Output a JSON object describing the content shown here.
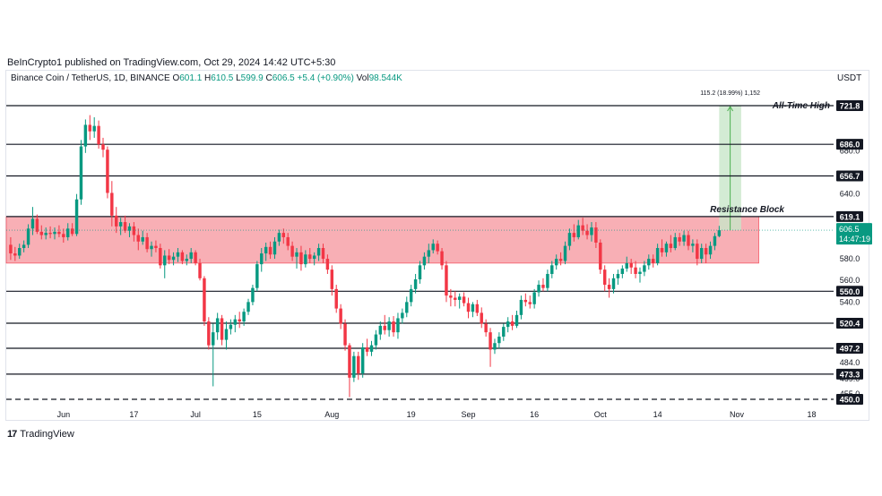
{
  "header": {
    "publisher": "BeInCrypto1 published on TradingView.com, Oct 29, 2024 14:42 UTC+5:30",
    "symbol": "Binance Coin / TetherUS, 1D, BINANCE",
    "open_label": "O",
    "open": "601.1",
    "high_label": "H",
    "high": "610.5",
    "low_label": "L",
    "low": "599.9",
    "close_label": "C",
    "close": "606.5",
    "change": "+5.4 (+0.90%)",
    "vol_label": "Vol",
    "vol": "98.544K",
    "currency": "USDT"
  },
  "footer": {
    "brand": "TradingView",
    "logo": "17"
  },
  "colors": {
    "up": "#089981",
    "down": "#f23645",
    "zone": "#f7a1a8",
    "projection": "#c8e6c9"
  },
  "chart_data": {
    "type": "candlestick",
    "y_range": [
      445,
      740
    ],
    "x_range": [
      "2024-05-19",
      "2024-11-23"
    ],
    "x_ticks": [
      {
        "label": "Jun",
        "date": "2024-06-01"
      },
      {
        "label": "17",
        "date": "2024-06-17"
      },
      {
        "label": "Jul",
        "date": "2024-07-01"
      },
      {
        "label": "15",
        "date": "2024-07-15"
      },
      {
        "label": "Aug",
        "date": "2024-08-01"
      },
      {
        "label": "19",
        "date": "2024-08-19"
      },
      {
        "label": "Sep",
        "date": "2024-09-01"
      },
      {
        "label": "16",
        "date": "2024-09-16"
      },
      {
        "label": "Oct",
        "date": "2024-10-01"
      },
      {
        "label": "14",
        "date": "2024-10-14"
      },
      {
        "label": "Nov",
        "date": "2024-11-01"
      },
      {
        "label": "18",
        "date": "2024-11-18"
      }
    ],
    "y_ticks": [
      455.0,
      469.0,
      484.0,
      540.0,
      560.0,
      580.0,
      640.0,
      680.0
    ],
    "levels": [
      {
        "label": "721.8",
        "value": 721.8,
        "style": "solid"
      },
      {
        "label": "686.0",
        "value": 686.0,
        "style": "solid"
      },
      {
        "label": "656.7",
        "value": 656.7,
        "style": "solid"
      },
      {
        "label": "619.1",
        "value": 619.1,
        "style": "solid"
      },
      {
        "label": "550.0",
        "value": 550.0,
        "style": "solid"
      },
      {
        "label": "520.4",
        "value": 520.4,
        "style": "solid"
      },
      {
        "label": "497.2",
        "value": 497.2,
        "style": "solid"
      },
      {
        "label": "473.3",
        "value": 473.3,
        "style": "solid"
      },
      {
        "label": "450.0",
        "value": 450.0,
        "style": "dashed"
      }
    ],
    "current_price": {
      "label": "606.5",
      "value": 606.5,
      "countdown": "14:47:19"
    },
    "resistance_zone": {
      "label": "Resistance Block",
      "top": 619.1,
      "bottom": 576.0,
      "start": "2024-05-19",
      "end": "2024-11-06"
    },
    "projection": {
      "label": "115.2 (18.99%) 1,152",
      "from": 606.5,
      "to": 721.8,
      "start": "2024-10-28",
      "end": "2024-11-02"
    },
    "annotations": [
      {
        "text": "All-Time High",
        "value": 721.8
      },
      {
        "text": "Resistance Block",
        "value": 619.1
      }
    ],
    "ohlc": [
      [
        "2024-05-20",
        593,
        600,
        579,
        585
      ],
      [
        "2024-05-21",
        585,
        591,
        578,
        583
      ],
      [
        "2024-05-22",
        583,
        594,
        580,
        590
      ],
      [
        "2024-05-23",
        590,
        597,
        586,
        593
      ],
      [
        "2024-05-24",
        593,
        612,
        590,
        608
      ],
      [
        "2024-05-25",
        608,
        628,
        602,
        617
      ],
      [
        "2024-05-26",
        617,
        621,
        603,
        605
      ],
      [
        "2024-05-27",
        605,
        611,
        598,
        602
      ],
      [
        "2024-05-28",
        602,
        609,
        598,
        604
      ],
      [
        "2024-05-29",
        604,
        610,
        599,
        603
      ],
      [
        "2024-05-30",
        603,
        609,
        598,
        605
      ],
      [
        "2024-05-31",
        605,
        611,
        600,
        603
      ],
      [
        "2024-06-01",
        603,
        608,
        595,
        600
      ],
      [
        "2024-06-02",
        600,
        613,
        597,
        608
      ],
      [
        "2024-06-03",
        608,
        613,
        601,
        603
      ],
      [
        "2024-06-04",
        603,
        640,
        601,
        635
      ],
      [
        "2024-06-05",
        635,
        690,
        630,
        684
      ],
      [
        "2024-06-06",
        684,
        709,
        678,
        704
      ],
      [
        "2024-06-07",
        704,
        713,
        690,
        698
      ],
      [
        "2024-06-08",
        698,
        711,
        692,
        703
      ],
      [
        "2024-06-09",
        703,
        708,
        682,
        686
      ],
      [
        "2024-06-10",
        686,
        692,
        674,
        681
      ],
      [
        "2024-06-11",
        681,
        684,
        636,
        641
      ],
      [
        "2024-06-12",
        641,
        652,
        610,
        620
      ],
      [
        "2024-06-13",
        620,
        628,
        604,
        610
      ],
      [
        "2024-06-14",
        610,
        618,
        602,
        614
      ],
      [
        "2024-06-15",
        614,
        620,
        604,
        606
      ],
      [
        "2024-06-16",
        606,
        613,
        600,
        610
      ],
      [
        "2024-06-17",
        610,
        614,
        596,
        602
      ],
      [
        "2024-06-18",
        602,
        608,
        588,
        596
      ],
      [
        "2024-06-19",
        596,
        606,
        593,
        600
      ],
      [
        "2024-06-20",
        600,
        604,
        586,
        589
      ],
      [
        "2024-06-21",
        589,
        596,
        582,
        592
      ],
      [
        "2024-06-22",
        592,
        597,
        586,
        590
      ],
      [
        "2024-06-23",
        590,
        594,
        571,
        574
      ],
      [
        "2024-06-24",
        574,
        588,
        562,
        583
      ],
      [
        "2024-06-25",
        583,
        589,
        575,
        579
      ],
      [
        "2024-06-26",
        579,
        586,
        574,
        582
      ],
      [
        "2024-06-27",
        582,
        590,
        577,
        586
      ],
      [
        "2024-06-28",
        586,
        588,
        575,
        578
      ],
      [
        "2024-06-29",
        578,
        584,
        574,
        580
      ],
      [
        "2024-06-30",
        580,
        590,
        576,
        586
      ],
      [
        "2024-07-01",
        586,
        588,
        574,
        576
      ],
      [
        "2024-07-02",
        576,
        580,
        560,
        562
      ],
      [
        "2024-07-03",
        562,
        564,
        518,
        522
      ],
      [
        "2024-07-04",
        522,
        526,
        496,
        500
      ],
      [
        "2024-07-05",
        500,
        520,
        462,
        512
      ],
      [
        "2024-07-06",
        512,
        530,
        505,
        525
      ],
      [
        "2024-07-07",
        525,
        528,
        500,
        505
      ],
      [
        "2024-07-08",
        505,
        522,
        496,
        515
      ],
      [
        "2024-07-09",
        515,
        524,
        510,
        519
      ],
      [
        "2024-07-10",
        519,
        528,
        512,
        524
      ],
      [
        "2024-07-11",
        524,
        531,
        516,
        522
      ],
      [
        "2024-07-12",
        522,
        534,
        518,
        531
      ],
      [
        "2024-07-13",
        531,
        543,
        528,
        540
      ],
      [
        "2024-07-14",
        540,
        556,
        537,
        553
      ],
      [
        "2024-07-15",
        553,
        578,
        550,
        575
      ],
      [
        "2024-07-16",
        575,
        590,
        568,
        585
      ],
      [
        "2024-07-17",
        585,
        595,
        578,
        591
      ],
      [
        "2024-07-18",
        591,
        596,
        580,
        584
      ],
      [
        "2024-07-19",
        584,
        600,
        580,
        596
      ],
      [
        "2024-07-20",
        596,
        607,
        592,
        604
      ],
      [
        "2024-07-21",
        604,
        608,
        594,
        600
      ],
      [
        "2024-07-22",
        600,
        604,
        588,
        592
      ],
      [
        "2024-07-23",
        592,
        596,
        578,
        582
      ],
      [
        "2024-07-24",
        582,
        590,
        571,
        586
      ],
      [
        "2024-07-25",
        586,
        592,
        569,
        575
      ],
      [
        "2024-07-26",
        575,
        588,
        572,
        584
      ],
      [
        "2024-07-27",
        584,
        590,
        576,
        580
      ],
      [
        "2024-07-28",
        580,
        586,
        574,
        583
      ],
      [
        "2024-07-29",
        583,
        594,
        578,
        590
      ],
      [
        "2024-07-30",
        590,
        594,
        576,
        580
      ],
      [
        "2024-07-31",
        580,
        584,
        566,
        570
      ],
      [
        "2024-08-01",
        570,
        574,
        546,
        552
      ],
      [
        "2024-08-02",
        552,
        556,
        530,
        534
      ],
      [
        "2024-08-03",
        534,
        538,
        515,
        520
      ],
      [
        "2024-08-04",
        520,
        524,
        495,
        500
      ],
      [
        "2024-08-05",
        500,
        502,
        452,
        470
      ],
      [
        "2024-08-06",
        470,
        494,
        466,
        490
      ],
      [
        "2024-08-07",
        490,
        494,
        468,
        474
      ],
      [
        "2024-08-08",
        474,
        502,
        470,
        498
      ],
      [
        "2024-08-09",
        498,
        506,
        490,
        494
      ],
      [
        "2024-08-10",
        494,
        504,
        490,
        500
      ],
      [
        "2024-08-11",
        500,
        514,
        496,
        510
      ],
      [
        "2024-08-12",
        510,
        522,
        505,
        518
      ],
      [
        "2024-08-13",
        518,
        528,
        510,
        514
      ],
      [
        "2024-08-14",
        514,
        526,
        508,
        522
      ],
      [
        "2024-08-15",
        522,
        527,
        508,
        512
      ],
      [
        "2024-08-16",
        512,
        530,
        506,
        525
      ],
      [
        "2024-08-17",
        525,
        534,
        520,
        530
      ],
      [
        "2024-08-18",
        530,
        545,
        526,
        540
      ],
      [
        "2024-08-19",
        540,
        556,
        536,
        552
      ],
      [
        "2024-08-20",
        552,
        566,
        548,
        561
      ],
      [
        "2024-08-21",
        561,
        578,
        557,
        574
      ],
      [
        "2024-08-22",
        574,
        586,
        570,
        582
      ],
      [
        "2024-08-23",
        582,
        594,
        576,
        588
      ],
      [
        "2024-08-24",
        588,
        598,
        585,
        594
      ],
      [
        "2024-08-25",
        594,
        597,
        584,
        587
      ],
      [
        "2024-08-26",
        587,
        590,
        570,
        574
      ],
      [
        "2024-08-27",
        574,
        578,
        540,
        546
      ],
      [
        "2024-08-28",
        546,
        552,
        536,
        544
      ],
      [
        "2024-08-29",
        544,
        550,
        536,
        542
      ],
      [
        "2024-08-30",
        542,
        548,
        534,
        545
      ],
      [
        "2024-08-31",
        545,
        549,
        536,
        539
      ],
      [
        "2024-09-01",
        539,
        544,
        525,
        531
      ],
      [
        "2024-09-02",
        531,
        540,
        526,
        538
      ],
      [
        "2024-09-03",
        538,
        542,
        527,
        530
      ],
      [
        "2024-09-04",
        530,
        535,
        516,
        520
      ],
      [
        "2024-09-05",
        520,
        524,
        508,
        512
      ],
      [
        "2024-09-06",
        512,
        516,
        480,
        496
      ],
      [
        "2024-09-07",
        496,
        506,
        492,
        502
      ],
      [
        "2024-09-08",
        502,
        512,
        497,
        508
      ],
      [
        "2024-09-09",
        508,
        520,
        504,
        517
      ],
      [
        "2024-09-10",
        517,
        526,
        512,
        522
      ],
      [
        "2024-09-11",
        522,
        528,
        514,
        518
      ],
      [
        "2024-09-12",
        518,
        532,
        516,
        528
      ],
      [
        "2024-09-13",
        528,
        546,
        524,
        542
      ],
      [
        "2024-09-14",
        542,
        548,
        536,
        540
      ],
      [
        "2024-09-15",
        540,
        546,
        534,
        538
      ],
      [
        "2024-09-16",
        538,
        552,
        534,
        549
      ],
      [
        "2024-09-17",
        549,
        560,
        545,
        556
      ],
      [
        "2024-09-18",
        556,
        562,
        550,
        553
      ],
      [
        "2024-09-19",
        553,
        570,
        550,
        566
      ],
      [
        "2024-09-20",
        566,
        578,
        562,
        574
      ],
      [
        "2024-09-21",
        574,
        584,
        570,
        580
      ],
      [
        "2024-09-22",
        580,
        586,
        574,
        578
      ],
      [
        "2024-09-23",
        578,
        596,
        575,
        592
      ],
      [
        "2024-09-24",
        592,
        608,
        588,
        604
      ],
      [
        "2024-09-25",
        604,
        612,
        596,
        600
      ],
      [
        "2024-09-26",
        600,
        616,
        598,
        611
      ],
      [
        "2024-09-27",
        611,
        618,
        602,
        606
      ],
      [
        "2024-09-28",
        606,
        612,
        598,
        602
      ],
      [
        "2024-09-29",
        602,
        614,
        596,
        609
      ],
      [
        "2024-09-30",
        609,
        614,
        590,
        595
      ],
      [
        "2024-10-01",
        595,
        598,
        566,
        570
      ],
      [
        "2024-10-02",
        570,
        574,
        550,
        556
      ],
      [
        "2024-10-03",
        556,
        562,
        544,
        552
      ],
      [
        "2024-10-04",
        552,
        566,
        548,
        562
      ],
      [
        "2024-10-05",
        562,
        570,
        556,
        566
      ],
      [
        "2024-10-06",
        566,
        574,
        562,
        571
      ],
      [
        "2024-10-07",
        571,
        582,
        568,
        576
      ],
      [
        "2024-10-08",
        576,
        580,
        566,
        572
      ],
      [
        "2024-10-09",
        572,
        578,
        562,
        566
      ],
      [
        "2024-10-10",
        566,
        572,
        558,
        568
      ],
      [
        "2024-10-11",
        568,
        578,
        564,
        574
      ],
      [
        "2024-10-12",
        574,
        584,
        570,
        580
      ],
      [
        "2024-10-13",
        580,
        584,
        572,
        576
      ],
      [
        "2024-10-14",
        576,
        594,
        574,
        590
      ],
      [
        "2024-10-15",
        590,
        598,
        582,
        586
      ],
      [
        "2024-10-16",
        586,
        596,
        582,
        594
      ],
      [
        "2024-10-17",
        594,
        602,
        586,
        590
      ],
      [
        "2024-10-18",
        590,
        604,
        588,
        600
      ],
      [
        "2024-10-19",
        600,
        604,
        592,
        596
      ],
      [
        "2024-10-20",
        596,
        606,
        592,
        602
      ],
      [
        "2024-10-21",
        602,
        606,
        588,
        592
      ],
      [
        "2024-10-22",
        592,
        598,
        586,
        594
      ],
      [
        "2024-10-23",
        594,
        598,
        574,
        580
      ],
      [
        "2024-10-24",
        580,
        594,
        576,
        590
      ],
      [
        "2024-10-25",
        590,
        594,
        576,
        584
      ],
      [
        "2024-10-26",
        584,
        596,
        580,
        592
      ],
      [
        "2024-10-27",
        592,
        604,
        588,
        601
      ],
      [
        "2024-10-28",
        601,
        610.5,
        599.9,
        606.5
      ]
    ]
  }
}
